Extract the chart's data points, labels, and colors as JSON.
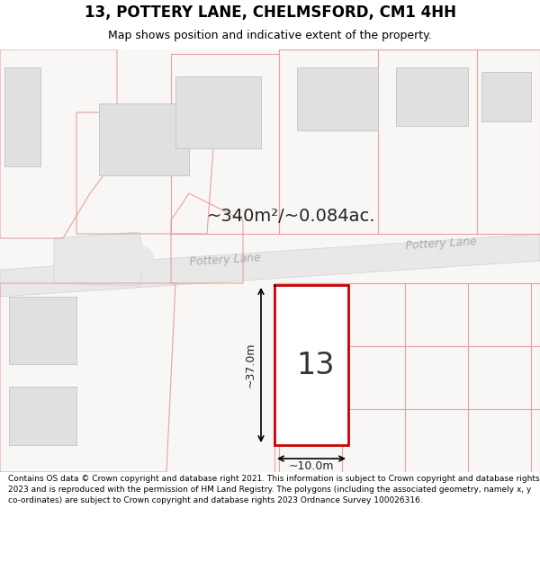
{
  "title_line1": "13, POTTERY LANE, CHELMSFORD, CM1 4HH",
  "title_line2": "Map shows position and indicative extent of the property.",
  "area_text": "~340m²/~0.084ac.",
  "dimension_width": "~10.0m",
  "dimension_height": "~37.0m",
  "plot_number": "13",
  "road_label_left": "Pottery Lane",
  "road_label_right": "Pottery Lane",
  "footer_text": "Contains OS data © Crown copyright and database right 2021. This information is subject to Crown copyright and database rights 2023 and is reproduced with the permission of HM Land Registry. The polygons (including the associated geometry, namely x, y co-ordinates) are subject to Crown copyright and database rights 2023 Ordnance Survey 100026316.",
  "map_bg": "#f7f6f4",
  "plot_fill": "#ffffff",
  "plot_border": "#cc0000",
  "building_fill": "#e0e0e0",
  "building_border": "#c8c8c8",
  "parcel_border": "#e8a0a0",
  "road_fill": "#eeeeee",
  "road_border": "#d0d0d0",
  "title_bg": "#ffffff",
  "footer_bg": "#ffffff",
  "title_fontsize": 12,
  "subtitle_fontsize": 9,
  "footer_fontsize": 6.5
}
